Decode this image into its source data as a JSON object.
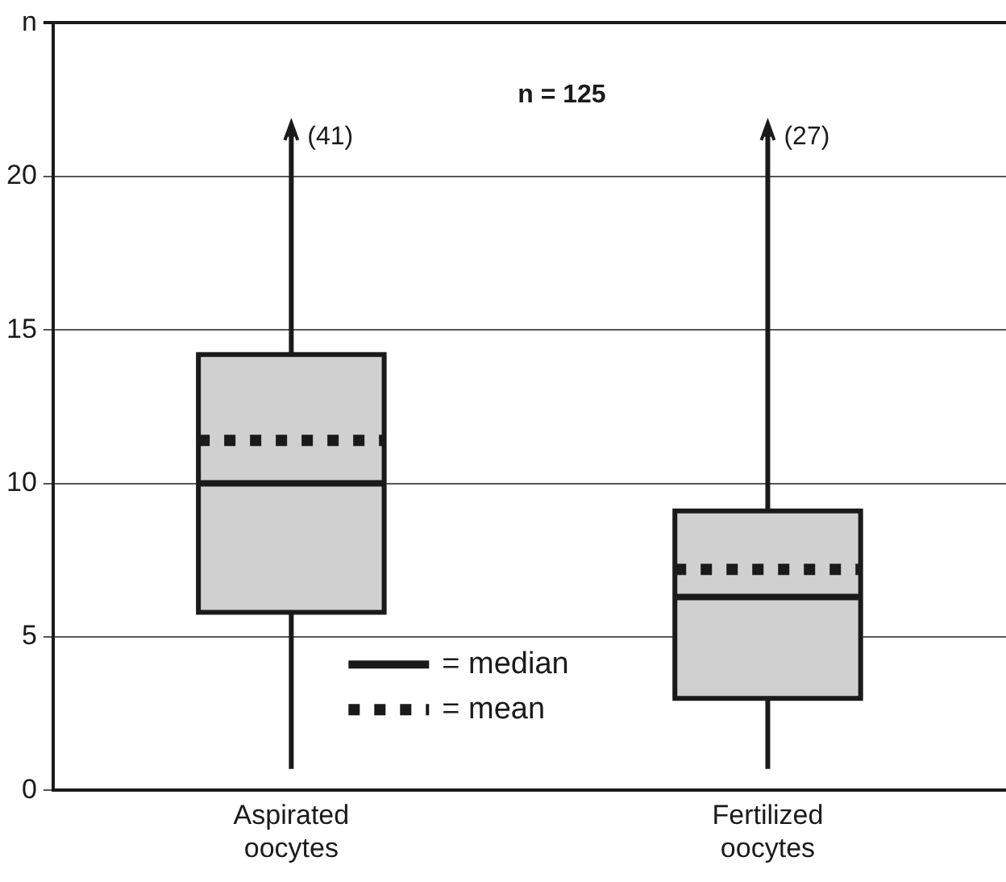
{
  "chart_data": {
    "type": "box",
    "title": "n = 125",
    "categories": [
      "Aspirated oocytes",
      "Fertilized oocytes"
    ],
    "series": [
      {
        "color": "#d0d0d0",
        "boxes": [
          {
            "low": 0.7,
            "q1": 5.8,
            "median": 10.0,
            "q3": 14.2,
            "high": 21.6,
            "mean": 11.4
          },
          {
            "low": 0.7,
            "q1": 3.0,
            "median": 6.3,
            "q3": 9.1,
            "high": 21.6,
            "mean": 7.2
          }
        ]
      }
    ],
    "ylim": [
      0,
      25
    ],
    "yticks": [
      0,
      5,
      10,
      15,
      20,
      {
        "value": 25,
        "label": "n"
      }
    ],
    "grid": "y",
    "legend": false,
    "annotations": [
      {
        "text": "(41)",
        "x": "Aspirated oocytes",
        "y": 21.6
      },
      {
        "text": "(27)",
        "x": "Fertilized oocytes",
        "y": 21.6
      },
      "= median",
      "= mean"
    ]
  }
}
